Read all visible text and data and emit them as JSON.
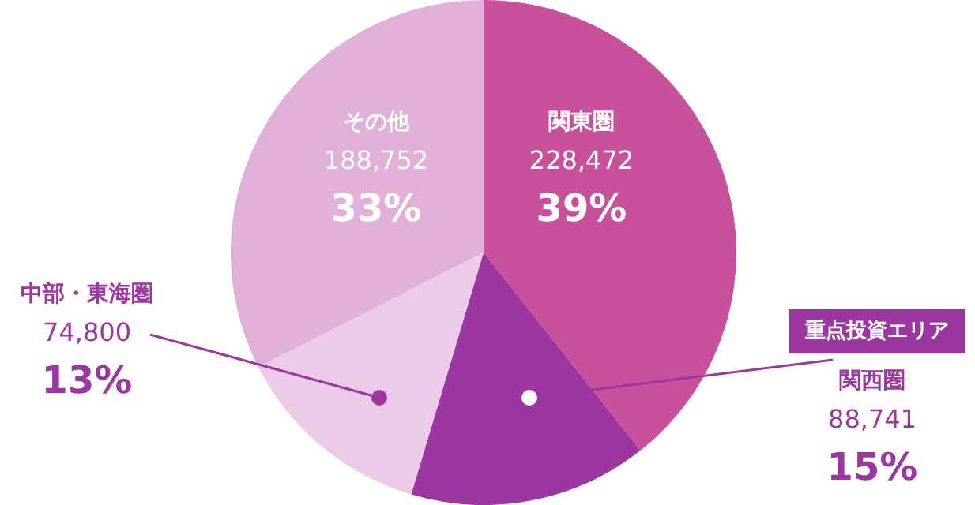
{
  "chart_data": {
    "type": "pie",
    "categories": [
      "関東圏",
      "関西圏",
      "中部・東海圏",
      "その他"
    ],
    "values": [
      228472,
      88741,
      74800,
      188752
    ],
    "value_labels": [
      "228,472",
      "88,741",
      "74,800",
      "188,752"
    ],
    "colors": [
      "#c9509b",
      "#9c36a0",
      "#ebcbe7",
      "#e0b0d8"
    ],
    "annotations": [
      "39%",
      "15%",
      "13%",
      "33%",
      "重点投資エリア"
    ],
    "legend": false
  }
}
